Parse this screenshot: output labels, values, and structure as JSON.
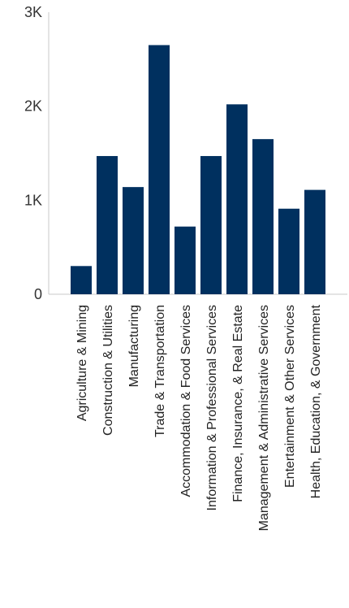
{
  "chart_data": {
    "type": "bar",
    "title": "",
    "xlabel": "",
    "ylabel": "",
    "ylim": [
      0,
      3000
    ],
    "yticks": [
      {
        "value": 0,
        "label": "0"
      },
      {
        "value": 1000,
        "label": "1K"
      },
      {
        "value": 2000,
        "label": "2K"
      },
      {
        "value": 3000,
        "label": "3K"
      }
    ],
    "grid": false,
    "legend": "none",
    "bar_color": "#00305f",
    "categories": [
      "Agriculture & Mining",
      "Construction & Utilities",
      "Manufacturing",
      "Trade & Transportation",
      "Accommodation & Food Services",
      "Information & Professional Services",
      "Finance, Insurance, & Real Estate",
      "Management & Administrative Services",
      "Entertainment &  Other Services",
      "Health, Education, & Government"
    ],
    "values": [
      300,
      1470,
      1140,
      2650,
      720,
      1470,
      2020,
      1650,
      910,
      1110
    ]
  }
}
